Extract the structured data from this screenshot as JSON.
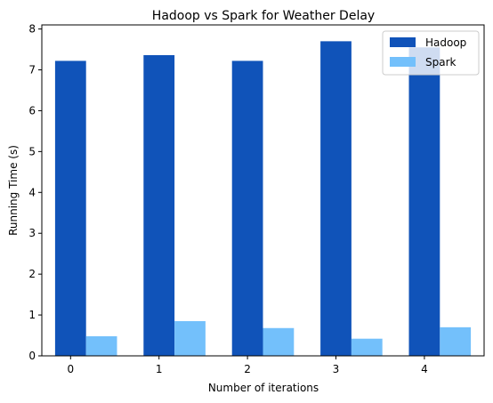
{
  "chart_data": {
    "type": "bar",
    "title": "Hadoop vs Spark for Weather Delay",
    "xlabel": "Number of iterations",
    "ylabel": "Running Time (s)",
    "categories": [
      "0",
      "1",
      "2",
      "3",
      "4"
    ],
    "yticks": [
      "0",
      "1",
      "2",
      "3",
      "4",
      "5",
      "6",
      "7",
      "8"
    ],
    "ylim": [
      0,
      8.1
    ],
    "grid": false,
    "legend_placement": "top-right",
    "series": [
      {
        "name": "Hadoop",
        "color": "#1053b9",
        "values": [
          7.22,
          7.36,
          7.22,
          7.7,
          7.55
        ]
      },
      {
        "name": "Spark",
        "color": "#73c0fb",
        "values": [
          0.48,
          0.85,
          0.68,
          0.42,
          0.7
        ]
      }
    ]
  }
}
